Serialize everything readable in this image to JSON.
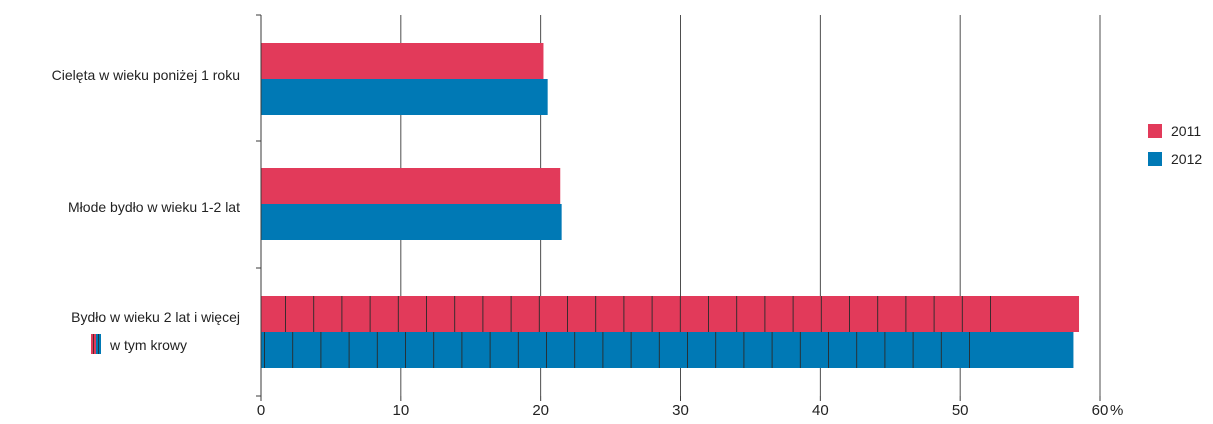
{
  "chart_data": {
    "type": "bar",
    "orientation": "horizontal",
    "categories": [
      "Cielęta w wieku poniżej 1 roku",
      "Młode bydło w wieku 1-2 lat",
      "Bydło w wieku 2 lat i więcej"
    ],
    "sub_label": "w tym krowy",
    "series": [
      {
        "name": "2011",
        "color": "#e23a5a",
        "values": [
          20.2,
          21.4,
          58.5
        ],
        "sub_values": [
          52.4
        ]
      },
      {
        "name": "2012",
        "color": "#0079b5",
        "values": [
          20.5,
          21.5,
          58.1
        ],
        "sub_values": [
          51.0
        ]
      }
    ],
    "x_ticks": [
      "0",
      "10",
      "20",
      "30",
      "40",
      "50",
      "60"
    ],
    "x_unit": "%",
    "xlim": [
      0,
      60
    ],
    "grid": true,
    "legend_position": "right"
  }
}
